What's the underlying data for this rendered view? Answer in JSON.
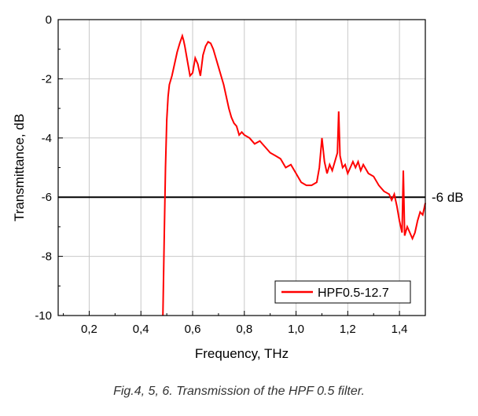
{
  "chart_data": {
    "type": "line",
    "xlabel": "Frequency, THz",
    "ylabel": "Transmittance, dB",
    "xlim": [
      0.08,
      1.5
    ],
    "ylim": [
      -10,
      0
    ],
    "x_ticks": [
      0.2,
      0.4,
      0.6,
      0.8,
      1.0,
      1.2,
      1.4
    ],
    "x_tick_labels": [
      "0,2",
      "0,4",
      "0,6",
      "0,8",
      "1,0",
      "1,2",
      "1,4"
    ],
    "y_ticks": [
      0,
      -2,
      -4,
      -6,
      -8,
      -10
    ],
    "y_tick_labels": [
      "0",
      "-2",
      "-4",
      "-6",
      "-8",
      "-10"
    ],
    "grid": true,
    "legend_position": "bottom-right",
    "reference_line": {
      "y": -6,
      "label": "-6 dB",
      "color": "#000000"
    },
    "series": [
      {
        "name": "HPF0.5-12.7",
        "color": "#ff0000",
        "points": [
          [
            0.485,
            -10
          ],
          [
            0.49,
            -7.5
          ],
          [
            0.495,
            -5.0
          ],
          [
            0.5,
            -3.4
          ],
          [
            0.505,
            -2.6
          ],
          [
            0.51,
            -2.2
          ],
          [
            0.52,
            -1.9
          ],
          [
            0.53,
            -1.5
          ],
          [
            0.54,
            -1.1
          ],
          [
            0.55,
            -0.8
          ],
          [
            0.56,
            -0.55
          ],
          [
            0.565,
            -0.7
          ],
          [
            0.57,
            -0.9
          ],
          [
            0.58,
            -1.4
          ],
          [
            0.59,
            -1.9
          ],
          [
            0.6,
            -1.8
          ],
          [
            0.61,
            -1.3
          ],
          [
            0.62,
            -1.5
          ],
          [
            0.63,
            -1.9
          ],
          [
            0.64,
            -1.2
          ],
          [
            0.65,
            -0.9
          ],
          [
            0.66,
            -0.75
          ],
          [
            0.67,
            -0.8
          ],
          [
            0.68,
            -1.0
          ],
          [
            0.69,
            -1.3
          ],
          [
            0.7,
            -1.6
          ],
          [
            0.71,
            -1.9
          ],
          [
            0.72,
            -2.2
          ],
          [
            0.73,
            -2.6
          ],
          [
            0.74,
            -3.0
          ],
          [
            0.75,
            -3.3
          ],
          [
            0.76,
            -3.5
          ],
          [
            0.77,
            -3.6
          ],
          [
            0.78,
            -3.9
          ],
          [
            0.79,
            -3.8
          ],
          [
            0.8,
            -3.9
          ],
          [
            0.82,
            -4.0
          ],
          [
            0.84,
            -4.2
          ],
          [
            0.86,
            -4.1
          ],
          [
            0.88,
            -4.3
          ],
          [
            0.9,
            -4.5
          ],
          [
            0.92,
            -4.6
          ],
          [
            0.94,
            -4.7
          ],
          [
            0.96,
            -5.0
          ],
          [
            0.98,
            -4.9
          ],
          [
            1.0,
            -5.2
          ],
          [
            1.02,
            -5.5
          ],
          [
            1.04,
            -5.6
          ],
          [
            1.06,
            -5.6
          ],
          [
            1.08,
            -5.5
          ],
          [
            1.09,
            -5.0
          ],
          [
            1.1,
            -4.0
          ],
          [
            1.11,
            -4.8
          ],
          [
            1.12,
            -5.2
          ],
          [
            1.13,
            -4.9
          ],
          [
            1.14,
            -5.1
          ],
          [
            1.15,
            -4.8
          ],
          [
            1.16,
            -4.5
          ],
          [
            1.165,
            -3.1
          ],
          [
            1.17,
            -4.6
          ],
          [
            1.18,
            -5.0
          ],
          [
            1.19,
            -4.9
          ],
          [
            1.2,
            -5.2
          ],
          [
            1.22,
            -4.8
          ],
          [
            1.23,
            -5.0
          ],
          [
            1.24,
            -4.8
          ],
          [
            1.25,
            -5.1
          ],
          [
            1.26,
            -4.9
          ],
          [
            1.28,
            -5.2
          ],
          [
            1.3,
            -5.3
          ],
          [
            1.32,
            -5.6
          ],
          [
            1.34,
            -5.8
          ],
          [
            1.36,
            -5.9
          ],
          [
            1.37,
            -6.1
          ],
          [
            1.38,
            -5.9
          ],
          [
            1.39,
            -6.3
          ],
          [
            1.4,
            -6.8
          ],
          [
            1.41,
            -7.2
          ],
          [
            1.415,
            -5.1
          ],
          [
            1.42,
            -7.3
          ],
          [
            1.43,
            -7.0
          ],
          [
            1.44,
            -7.2
          ],
          [
            1.45,
            -7.4
          ],
          [
            1.46,
            -7.2
          ],
          [
            1.47,
            -6.8
          ],
          [
            1.48,
            -6.5
          ],
          [
            1.49,
            -6.6
          ],
          [
            1.5,
            -6.2
          ]
        ]
      }
    ]
  },
  "caption": "Fig.4, 5, 6. Transmission of the HPF 0.5 filter."
}
